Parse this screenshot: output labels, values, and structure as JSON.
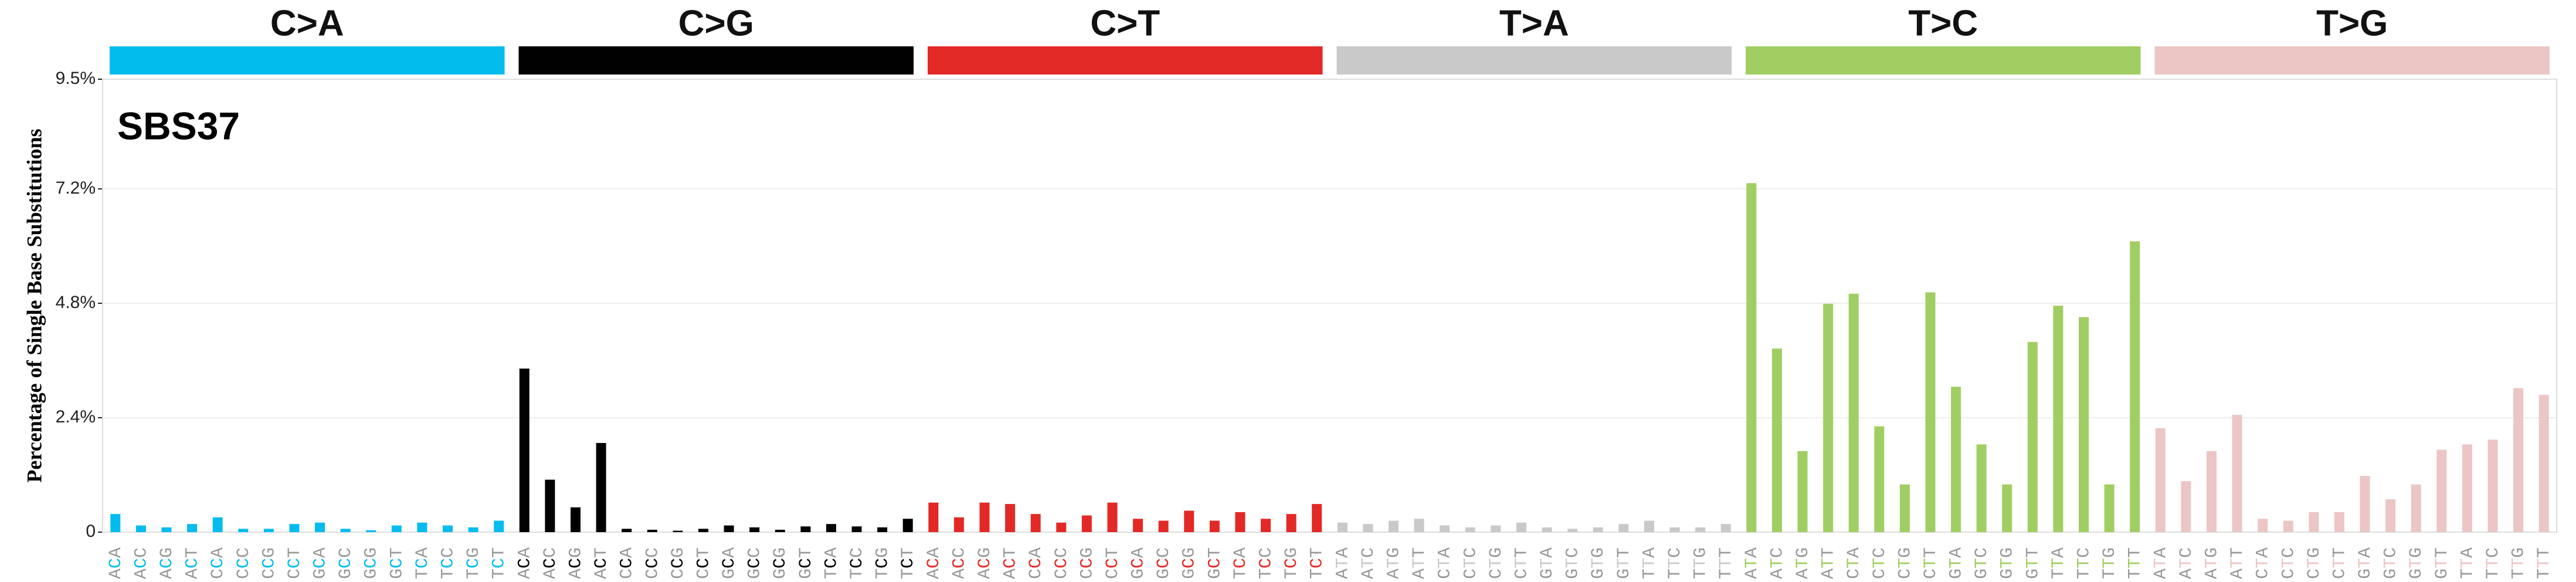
{
  "chart_data": {
    "type": "bar",
    "title": "SBS37",
    "ylabel": "Percentage of Single Base Substitutions",
    "ylim": [
      0,
      9.5
    ],
    "yticks": [
      {
        "value": 0,
        "label": "0"
      },
      {
        "value": 2.4,
        "label": "2.4%"
      },
      {
        "value": 4.8,
        "label": "4.8%"
      },
      {
        "value": 7.2,
        "label": "7.2%"
      },
      {
        "value": 9.5,
        "label": "9.5%"
      }
    ],
    "grid": true,
    "groups": [
      {
        "name": "C>A",
        "color": "#03bcee",
        "categories": [
          "ACA",
          "ACC",
          "ACG",
          "ACT",
          "CCA",
          "CCC",
          "CCG",
          "CCT",
          "GCA",
          "GCC",
          "GCG",
          "GCT",
          "TCA",
          "TCC",
          "TCG",
          "TCT"
        ],
        "values": [
          0.38,
          0.14,
          0.1,
          0.17,
          0.31,
          0.07,
          0.07,
          0.17,
          0.2,
          0.07,
          0.04,
          0.14,
          0.2,
          0.14,
          0.1,
          0.24
        ]
      },
      {
        "name": "C>G",
        "color": "#010101",
        "categories": [
          "ACA",
          "ACC",
          "ACG",
          "ACT",
          "CCA",
          "CCC",
          "CCG",
          "CCT",
          "GCA",
          "GCC",
          "GCG",
          "GCT",
          "TCA",
          "TCC",
          "TCG",
          "TCT"
        ],
        "values": [
          3.43,
          1.1,
          0.52,
          1.87,
          0.07,
          0.05,
          0.03,
          0.07,
          0.14,
          0.1,
          0.05,
          0.12,
          0.17,
          0.12,
          0.1,
          0.28
        ]
      },
      {
        "name": "C>T",
        "color": "#e32926",
        "categories": [
          "ACA",
          "ACC",
          "ACG",
          "ACT",
          "CCA",
          "CCC",
          "CCG",
          "CCT",
          "GCA",
          "GCC",
          "GCG",
          "GCT",
          "TCA",
          "TCC",
          "TCG",
          "TCT"
        ],
        "values": [
          0.62,
          0.31,
          0.62,
          0.59,
          0.38,
          0.2,
          0.35,
          0.62,
          0.28,
          0.24,
          0.45,
          0.24,
          0.42,
          0.28,
          0.38,
          0.59
        ]
      },
      {
        "name": "T>A",
        "color": "#cac9c9",
        "categories": [
          "ATA",
          "ATC",
          "ATG",
          "ATT",
          "CTA",
          "CTC",
          "CTG",
          "CTT",
          "GTA",
          "GTC",
          "GTG",
          "GTT",
          "TTA",
          "TTC",
          "TTG",
          "TTT"
        ],
        "values": [
          0.2,
          0.17,
          0.24,
          0.28,
          0.14,
          0.1,
          0.14,
          0.2,
          0.1,
          0.07,
          0.1,
          0.17,
          0.24,
          0.1,
          0.1,
          0.17
        ]
      },
      {
        "name": "T>C",
        "color": "#a1ce63",
        "categories": [
          "ATA",
          "ATC",
          "ATG",
          "ATT",
          "CTA",
          "CTC",
          "CTG",
          "CTT",
          "GTA",
          "GTC",
          "GTG",
          "GTT",
          "TTA",
          "TTC",
          "TTG",
          "TTT"
        ],
        "values": [
          7.32,
          3.85,
          1.7,
          4.79,
          5.0,
          2.22,
          1.0,
          5.03,
          3.05,
          1.84,
          1.0,
          3.99,
          4.75,
          4.51,
          1.0,
          6.1
        ]
      },
      {
        "name": "T>G",
        "color": "#ebc6c4",
        "categories": [
          "ATA",
          "ATC",
          "ATG",
          "ATT",
          "CTA",
          "CTC",
          "CTG",
          "CTT",
          "GTA",
          "GTC",
          "GTG",
          "GTT",
          "TTA",
          "TTC",
          "TTG",
          "TTT"
        ],
        "values": [
          2.18,
          1.07,
          1.7,
          2.46,
          0.28,
          0.24,
          0.42,
          0.42,
          1.18,
          0.69,
          1.0,
          1.73,
          1.84,
          1.94,
          3.02,
          2.88
        ]
      }
    ]
  }
}
